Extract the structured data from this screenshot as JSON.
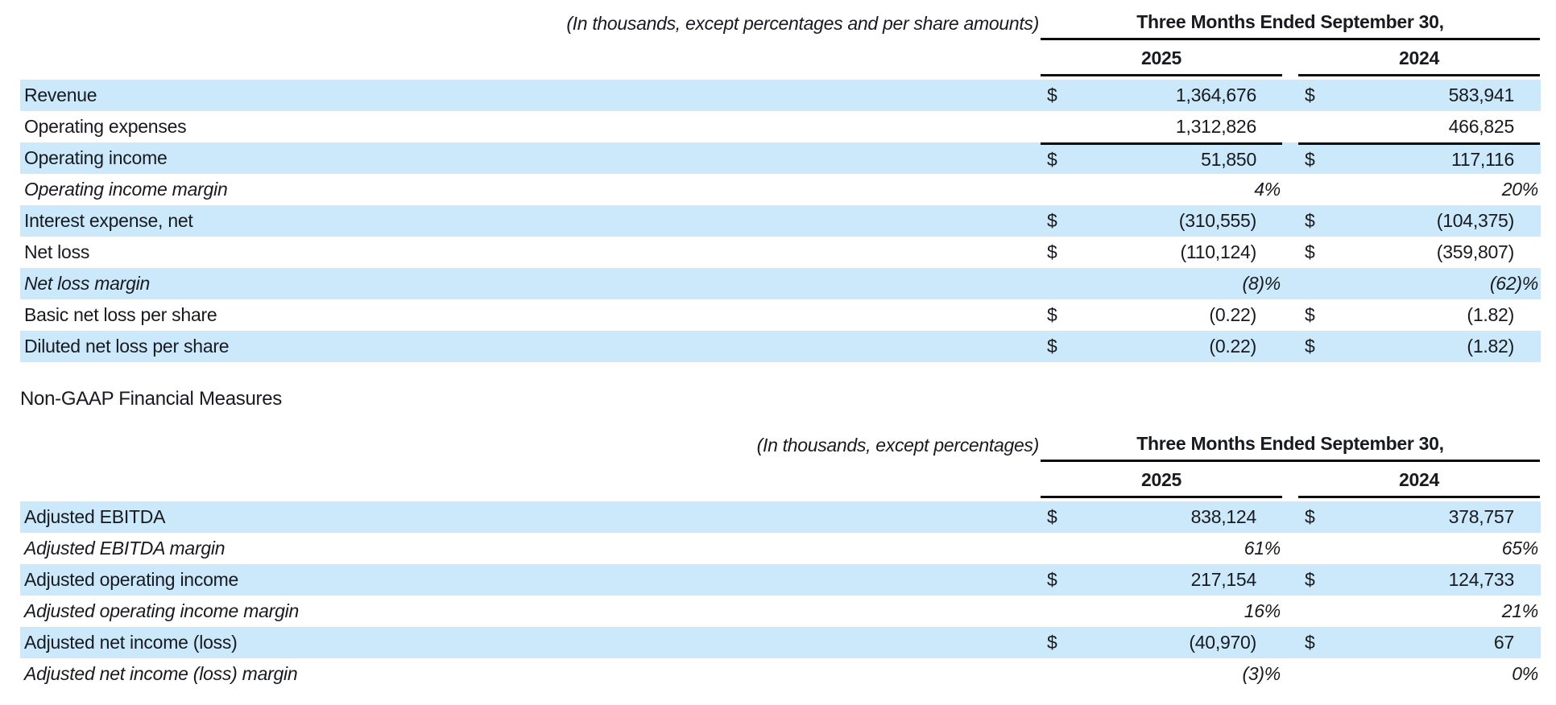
{
  "currency": "$",
  "section_heading": "Non-GAAP Financial Measures",
  "colors": {
    "row_highlight": "#cbe9fa",
    "text": "#181a20",
    "rule": "#0c0c0c"
  },
  "tables": [
    {
      "annotation": "(In thousands, except percentages and per share amounts)",
      "period_header": "Three Months Ended September 30,",
      "years": [
        "2025",
        "2024"
      ],
      "rows": [
        {
          "label": "Revenue",
          "dollar": true,
          "italic": false,
          "type": "amount",
          "shaded": true,
          "border_top": false,
          "values": [
            "1,364,676",
            "583,941"
          ]
        },
        {
          "label": "Operating expenses",
          "dollar": false,
          "italic": false,
          "type": "amount",
          "shaded": false,
          "border_top": false,
          "values": [
            "1,312,826",
            "466,825"
          ]
        },
        {
          "label": "Operating income",
          "dollar": true,
          "italic": false,
          "type": "amount",
          "shaded": true,
          "border_top": true,
          "values": [
            "51,850",
            "117,116"
          ]
        },
        {
          "label": "Operating income margin",
          "dollar": false,
          "italic": true,
          "type": "percent",
          "shaded": false,
          "border_top": false,
          "values": [
            "4%",
            "20%"
          ]
        },
        {
          "label": "Interest expense, net",
          "dollar": true,
          "italic": false,
          "type": "amount",
          "shaded": true,
          "border_top": false,
          "values": [
            "(310,555)",
            "(104,375)"
          ]
        },
        {
          "label": "Net loss",
          "dollar": true,
          "italic": false,
          "type": "amount",
          "shaded": false,
          "border_top": false,
          "values": [
            "(110,124)",
            "(359,807)"
          ]
        },
        {
          "label": "Net loss margin",
          "dollar": false,
          "italic": true,
          "type": "percent",
          "shaded": true,
          "border_top": false,
          "values": [
            "(8)%",
            "(62)%"
          ]
        },
        {
          "label": "Basic net loss per share",
          "dollar": true,
          "italic": false,
          "type": "amount",
          "shaded": false,
          "border_top": false,
          "values": [
            "(0.22)",
            "(1.82)"
          ]
        },
        {
          "label": "Diluted net loss per share",
          "dollar": true,
          "italic": false,
          "type": "amount",
          "shaded": true,
          "border_top": false,
          "values": [
            "(0.22)",
            "(1.82)"
          ]
        }
      ]
    },
    {
      "annotation": "(In thousands, except percentages)",
      "period_header": "Three Months Ended September 30,",
      "years": [
        "2025",
        "2024"
      ],
      "rows": [
        {
          "label": "Adjusted EBITDA",
          "dollar": true,
          "italic": false,
          "type": "amount",
          "shaded": true,
          "border_top": false,
          "values": [
            "838,124",
            "378,757"
          ]
        },
        {
          "label": "Adjusted EBITDA margin",
          "dollar": false,
          "italic": true,
          "type": "percent",
          "shaded": false,
          "border_top": false,
          "values": [
            "61%",
            "65%"
          ]
        },
        {
          "label": "Adjusted operating income",
          "dollar": true,
          "italic": false,
          "type": "amount",
          "shaded": true,
          "border_top": false,
          "values": [
            "217,154",
            "124,733"
          ]
        },
        {
          "label": "Adjusted operating income margin",
          "dollar": false,
          "italic": true,
          "type": "percent",
          "shaded": false,
          "border_top": false,
          "values": [
            "16%",
            "21%"
          ]
        },
        {
          "label": "Adjusted net income (loss)",
          "dollar": true,
          "italic": false,
          "type": "amount",
          "shaded": true,
          "border_top": false,
          "values": [
            "(40,970)",
            "67"
          ]
        },
        {
          "label": "Adjusted net income (loss) margin",
          "dollar": false,
          "italic": true,
          "type": "percent",
          "shaded": false,
          "border_top": false,
          "values": [
            "(3)%",
            "0%"
          ]
        }
      ]
    }
  ]
}
